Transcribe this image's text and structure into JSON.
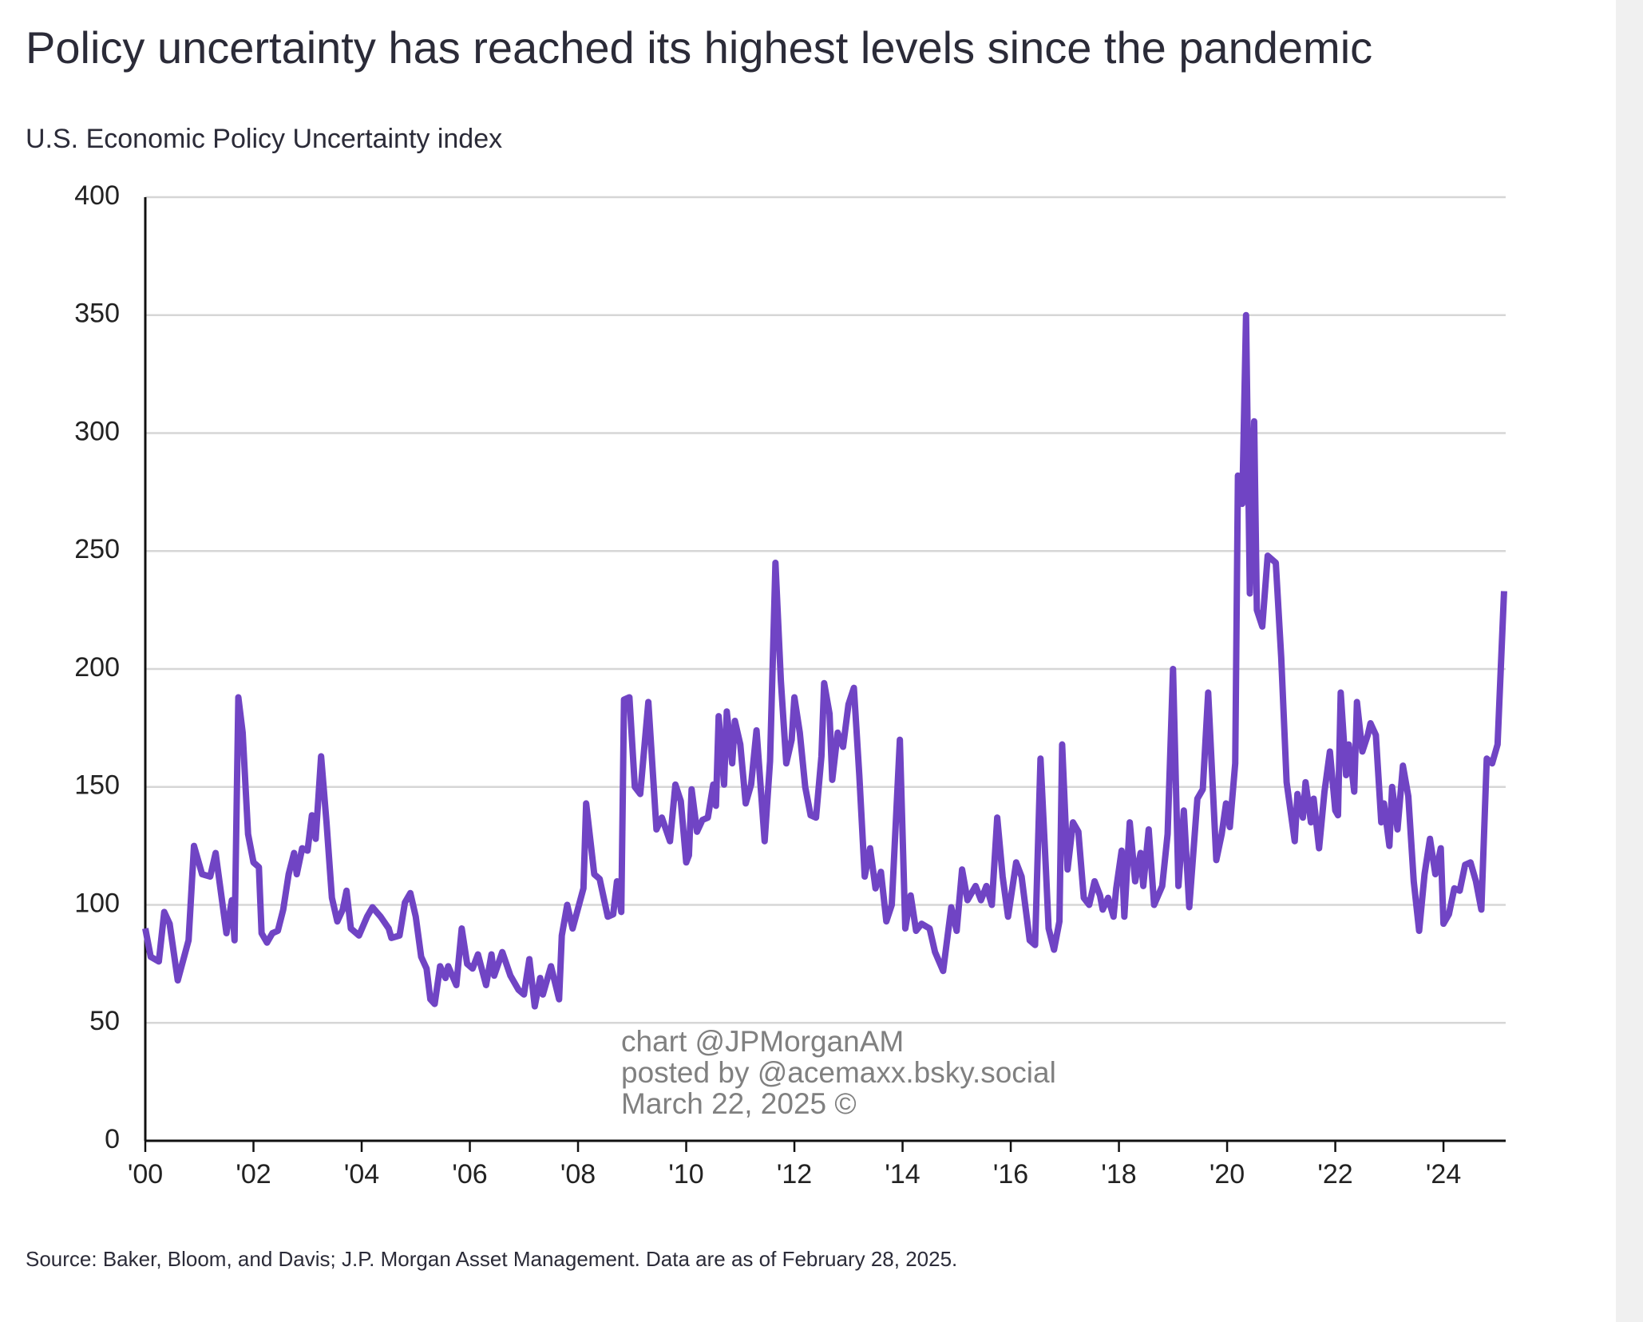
{
  "chart_data": {
    "type": "line",
    "title": "Policy uncertainty has reached its highest levels since the pandemic",
    "subtitle": "U.S. Economic Policy Uncertainty index",
    "source": "Source: Baker, Bloom, and Davis; J.P. Morgan Asset Management. Data are as of February 28, 2025.",
    "annotations": [
      "chart @JPMorganAM",
      "posted by @acemaxx.bsky.social",
      "March 22, 2025 ©"
    ],
    "xlim": [
      2000,
      2025.15
    ],
    "ylim": [
      0,
      400
    ],
    "yticks": [
      0,
      50,
      100,
      150,
      200,
      250,
      300,
      350,
      400
    ],
    "xticks": [
      {
        "value": 2000,
        "label": "'00"
      },
      {
        "value": 2002,
        "label": "'02"
      },
      {
        "value": 2004,
        "label": "'04"
      },
      {
        "value": 2006,
        "label": "'06"
      },
      {
        "value": 2008,
        "label": "'08"
      },
      {
        "value": 2010,
        "label": "'10"
      },
      {
        "value": 2012,
        "label": "'12"
      },
      {
        "value": 2014,
        "label": "'14"
      },
      {
        "value": 2016,
        "label": "'16"
      },
      {
        "value": 2018,
        "label": "'18"
      },
      {
        "value": 2020,
        "label": "'20"
      },
      {
        "value": 2022,
        "label": "'22"
      },
      {
        "value": 2024,
        "label": "'24"
      }
    ],
    "grid": true,
    "color": "#7044c4",
    "x": [
      2000.0,
      2000.1,
      2000.25,
      2000.35,
      2000.45,
      2000.6,
      2000.8,
      2000.9,
      2001.05,
      2001.2,
      2001.3,
      2001.5,
      2001.6,
      2001.65,
      2001.72,
      2001.8,
      2001.9,
      2002.0,
      2002.1,
      2002.15,
      2002.25,
      2002.35,
      2002.45,
      2002.55,
      2002.65,
      2002.75,
      2002.8,
      2002.9,
      2003.0,
      2003.08,
      2003.15,
      2003.25,
      2003.35,
      2003.45,
      2003.55,
      2003.65,
      2003.72,
      2003.8,
      2003.95,
      2004.1,
      2004.2,
      2004.35,
      2004.5,
      2004.55,
      2004.7,
      2004.8,
      2004.9,
      2005.0,
      2005.1,
      2005.2,
      2005.27,
      2005.35,
      2005.45,
      2005.55,
      2005.6,
      2005.75,
      2005.85,
      2005.95,
      2006.05,
      2006.15,
      2006.3,
      2006.4,
      2006.45,
      2006.6,
      2006.75,
      2006.9,
      2007.0,
      2007.1,
      2007.2,
      2007.3,
      2007.35,
      2007.5,
      2007.65,
      2007.7,
      2007.8,
      2007.9,
      2008.1,
      2008.15,
      2008.3,
      2008.4,
      2008.55,
      2008.65,
      2008.72,
      2008.8,
      2008.85,
      2008.95,
      2009.05,
      2009.15,
      2009.3,
      2009.45,
      2009.55,
      2009.7,
      2009.8,
      2009.9,
      2010.0,
      2010.05,
      2010.1,
      2010.2,
      2010.3,
      2010.4,
      2010.5,
      2010.55,
      2010.6,
      2010.7,
      2010.75,
      2010.85,
      2010.9,
      2011.0,
      2011.1,
      2011.2,
      2011.3,
      2011.45,
      2011.55,
      2011.65,
      2011.75,
      2011.85,
      2011.95,
      2012.0,
      2012.1,
      2012.2,
      2012.3,
      2012.4,
      2012.5,
      2012.55,
      2012.65,
      2012.7,
      2012.8,
      2012.9,
      2013.0,
      2013.1,
      2013.2,
      2013.3,
      2013.4,
      2013.5,
      2013.6,
      2013.7,
      2013.8,
      2013.95,
      2014.05,
      2014.15,
      2014.25,
      2014.35,
      2014.5,
      2014.6,
      2014.75,
      2014.9,
      2015.0,
      2015.1,
      2015.2,
      2015.35,
      2015.45,
      2015.55,
      2015.65,
      2015.75,
      2015.85,
      2015.95,
      2016.1,
      2016.2,
      2016.35,
      2016.45,
      2016.55,
      2016.65,
      2016.7,
      2016.8,
      2016.9,
      2016.95,
      2017.05,
      2017.15,
      2017.25,
      2017.35,
      2017.45,
      2017.55,
      2017.65,
      2017.7,
      2017.8,
      2017.9,
      2017.95,
      2018.05,
      2018.1,
      2018.2,
      2018.3,
      2018.4,
      2018.45,
      2018.55,
      2018.65,
      2018.8,
      2018.9,
      2019.0,
      2019.1,
      2019.2,
      2019.3,
      2019.45,
      2019.55,
      2019.65,
      2019.8,
      2019.9,
      2019.98,
      2020.05,
      2020.15,
      2020.2,
      2020.28,
      2020.35,
      2020.42,
      2020.5,
      2020.55,
      2020.65,
      2020.75,
      2020.9,
      2021.0,
      2021.1,
      2021.25,
      2021.3,
      2021.4,
      2021.45,
      2021.55,
      2021.6,
      2021.7,
      2021.8,
      2021.9,
      2022.0,
      2022.05,
      2022.1,
      2022.2,
      2022.25,
      2022.35,
      2022.4,
      2022.5,
      2022.6,
      2022.65,
      2022.75,
      2022.85,
      2022.9,
      2023.0,
      2023.05,
      2023.15,
      2023.25,
      2023.35,
      2023.45,
      2023.55,
      2023.65,
      2023.75,
      2023.85,
      2023.95,
      2024.0,
      2024.1,
      2024.2,
      2024.3,
      2024.4,
      2024.5,
      2024.6,
      2024.7,
      2024.8,
      2024.9,
      2025.0,
      2025.12
    ],
    "values": [
      90,
      78,
      76,
      97,
      92,
      68,
      85,
      125,
      113,
      112,
      122,
      88,
      102,
      85,
      188,
      173,
      130,
      118,
      116,
      88,
      84,
      88,
      89,
      98,
      113,
      122,
      113,
      124,
      123,
      138,
      128,
      163,
      135,
      103,
      93,
      98,
      106,
      90,
      87,
      95,
      99,
      95,
      90,
      86,
      87,
      101,
      105,
      95,
      78,
      73,
      60,
      58,
      74,
      69,
      74,
      66,
      90,
      75,
      73,
      79,
      66,
      79,
      70,
      80,
      70,
      64,
      62,
      77,
      57,
      69,
      62,
      74,
      60,
      87,
      100,
      90,
      107,
      143,
      113,
      111,
      95,
      96,
      110,
      97,
      187,
      188,
      150,
      147,
      186,
      132,
      137,
      127,
      151,
      144,
      118,
      121,
      149,
      131,
      136,
      137,
      151,
      142,
      180,
      151,
      182,
      160,
      178,
      168,
      143,
      151,
      174,
      127,
      161,
      245,
      195,
      160,
      170,
      188,
      173,
      150,
      138,
      137,
      163,
      194,
      181,
      153,
      173,
      167,
      185,
      192,
      155,
      112,
      124,
      107,
      114,
      93,
      100,
      170,
      90,
      104,
      89,
      92,
      90,
      80,
      72,
      99,
      89,
      115,
      102,
      108,
      102,
      108,
      100,
      137,
      112,
      95,
      118,
      112,
      85,
      83,
      162,
      115,
      90,
      81,
      93,
      168,
      115,
      135,
      131,
      103,
      100,
      110,
      104,
      98,
      103,
      95,
      107,
      123,
      95,
      135,
      110,
      122,
      108,
      132,
      100,
      108,
      130,
      200,
      108,
      140,
      99,
      145,
      149,
      190,
      119,
      130,
      143,
      133,
      160,
      282,
      270,
      350,
      232,
      305,
      225,
      218,
      248,
      245,
      205,
      152,
      127,
      147,
      137,
      152,
      135,
      145,
      124,
      148,
      165,
      140,
      138,
      190,
      155,
      168,
      148,
      186,
      165,
      172,
      177,
      172,
      135,
      143,
      125,
      150,
      132,
      159,
      146,
      110,
      89,
      113,
      128,
      113,
      124,
      92,
      96,
      107,
      106,
      117,
      118,
      110,
      98,
      162,
      160,
      168,
      233
    ]
  }
}
